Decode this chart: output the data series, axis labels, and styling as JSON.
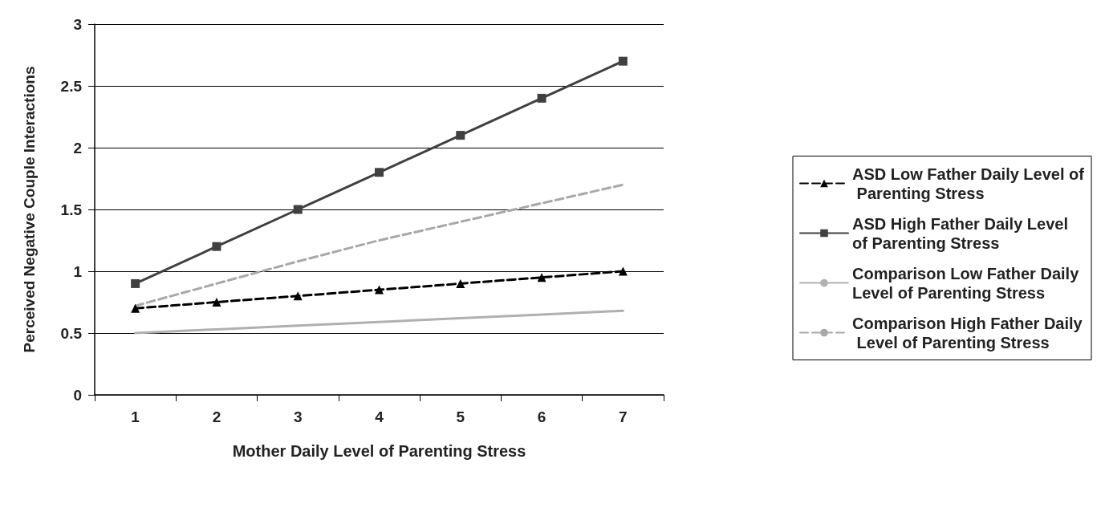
{
  "chart_data": {
    "type": "line",
    "xlabel": "Mother Daily Level of Parenting Stress",
    "ylabel": "Perceived Negative Couple Interactions",
    "categories": [
      "1",
      "2",
      "3",
      "4",
      "5",
      "6",
      "7"
    ],
    "ylim": [
      0,
      3
    ],
    "yticks": [
      0,
      0.5,
      1,
      1.5,
      2,
      2.5,
      3
    ],
    "grid": "y",
    "legend": "right",
    "series": [
      {
        "name": "ASD Low Father Daily Level of Parenting Stress",
        "color": "#000000",
        "marker": "triangle",
        "line_style": "dashed",
        "values": [
          0.7,
          0.75,
          0.8,
          0.85,
          0.9,
          0.95,
          1.0
        ]
      },
      {
        "name": "ASD High Father Daily Level of Parenting Stress",
        "color": "#404040",
        "marker": "square",
        "line_style": "solid",
        "values": [
          0.9,
          1.2,
          1.5,
          1.8,
          2.1,
          2.4,
          2.7
        ]
      },
      {
        "name": "Comparison Low Father Daily Level of Parenting Stress",
        "color": "#b0b0b0",
        "marker": "none",
        "line_style": "solid",
        "values": [
          0.5,
          0.53,
          0.56,
          0.59,
          0.62,
          0.65,
          0.68
        ]
      },
      {
        "name": "Comparison High Father Daily Level of Parenting Stress",
        "color": "#a8a8a8",
        "marker": "none",
        "line_style": "dashed",
        "values": [
          0.72,
          0.9,
          1.08,
          1.25,
          1.4,
          1.55,
          1.7
        ]
      }
    ]
  }
}
